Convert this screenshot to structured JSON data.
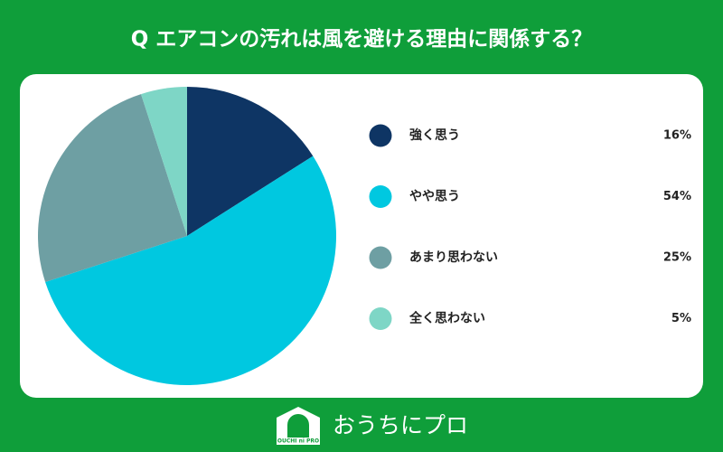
{
  "chart_data": {
    "type": "pie",
    "title": "Q エアコンの汚れは風を避ける理由に関係する？",
    "categories": [
      "強く思う",
      "やや思う",
      "あまり思わない",
      "全く思わない"
    ],
    "values": [
      16,
      54,
      25,
      5
    ],
    "value_labels": [
      "16%",
      "54%",
      "25%",
      "5%"
    ],
    "colors": [
      "#0e3564",
      "#00c8e0",
      "#6e9fa3",
      "#7ed6c6"
    ]
  },
  "logo": {
    "icon_text": "OUCHI ni PRO",
    "text": "おうちにプロ"
  }
}
